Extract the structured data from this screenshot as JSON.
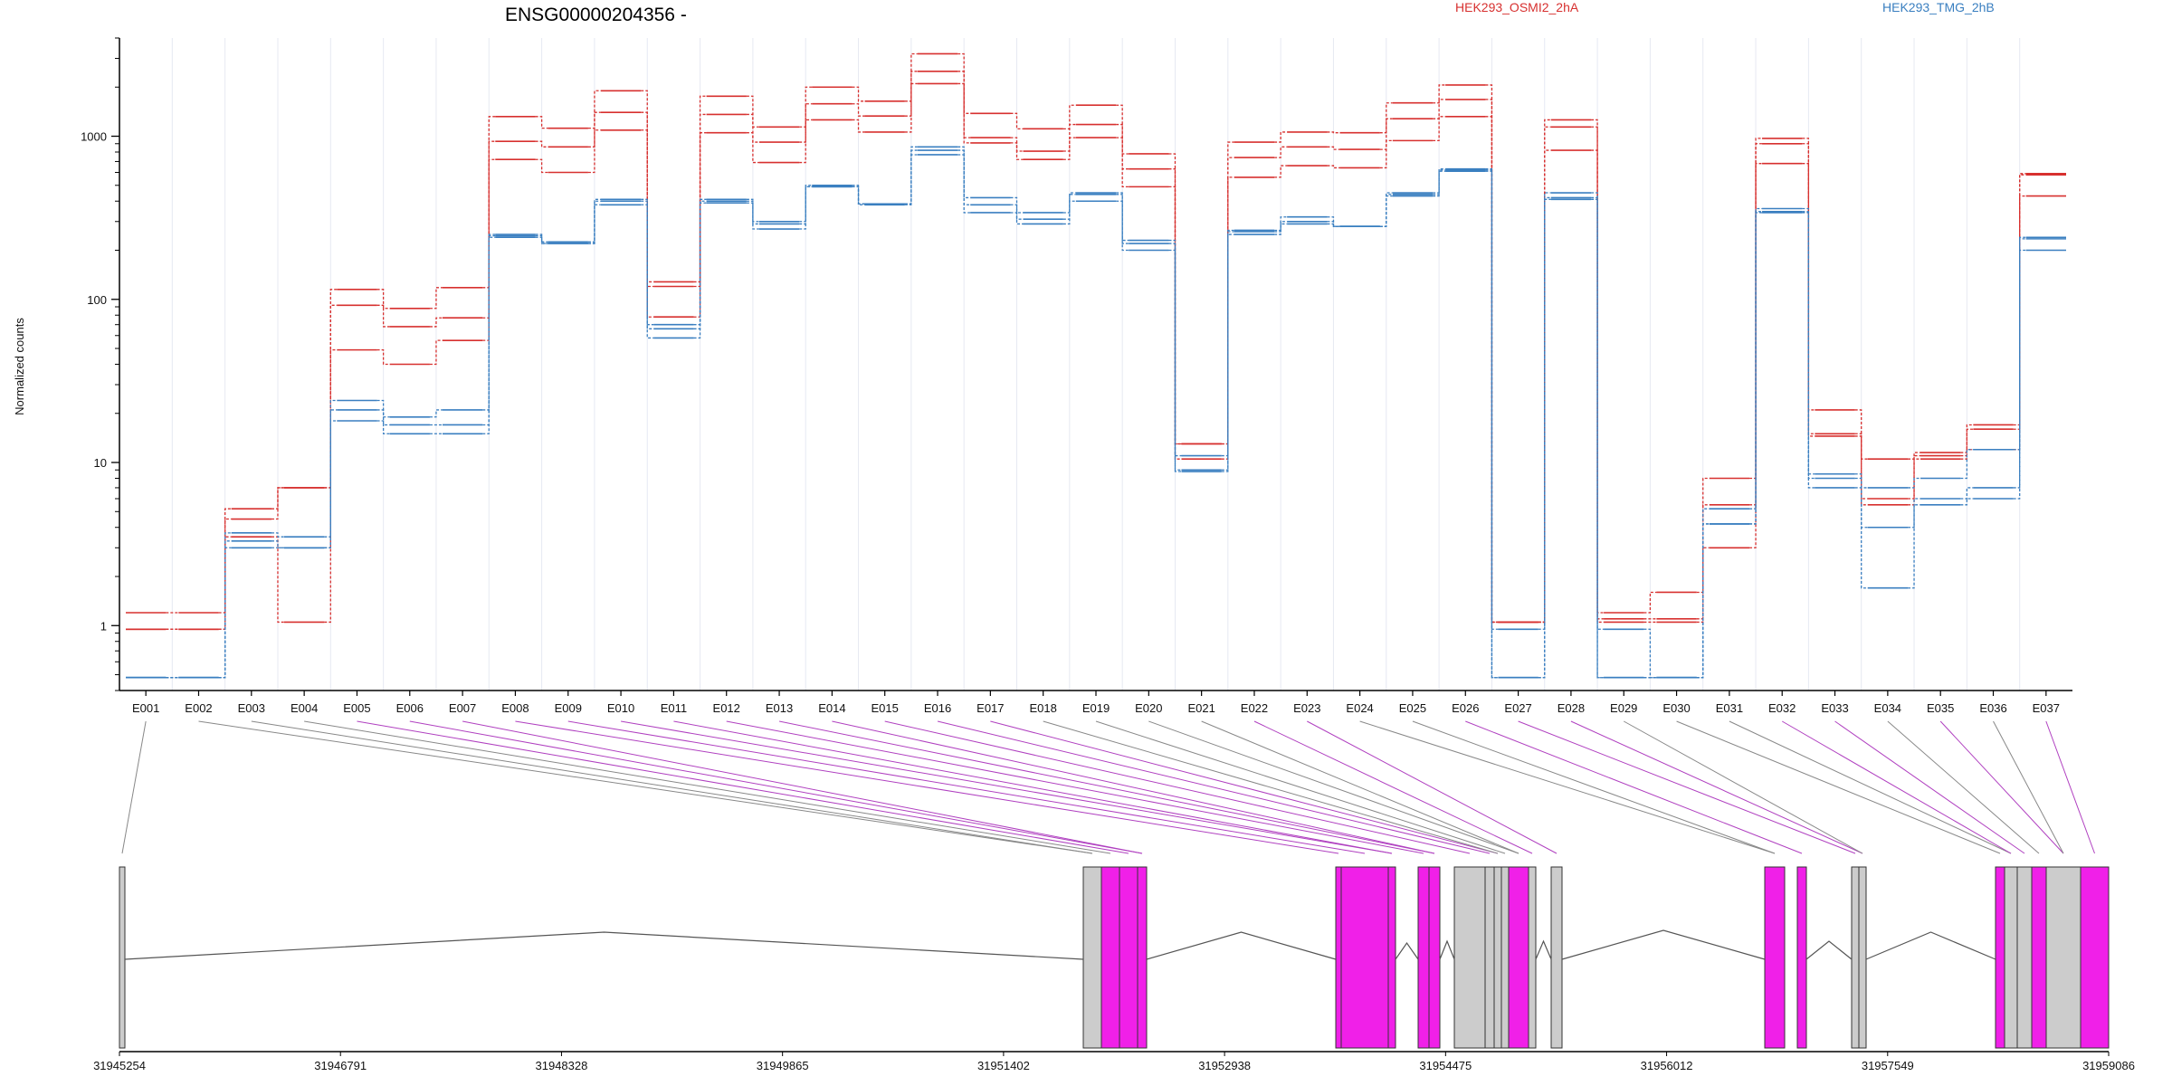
{
  "chart_data": {
    "type": "line",
    "title": "ENSG00000204356 -",
    "ylabel": "Normalized counts",
    "yscale": "log",
    "ylim": [
      0.4,
      4000
    ],
    "yticks": [
      1,
      10,
      100,
      1000
    ],
    "ytick_labels": [
      "1",
      "10",
      "100",
      "1000"
    ],
    "categories": [
      "E001",
      "E002",
      "E003",
      "E004",
      "E005",
      "E006",
      "E007",
      "E008",
      "E009",
      "E010",
      "E011",
      "E012",
      "E013",
      "E014",
      "E015",
      "E016",
      "E017",
      "E018",
      "E019",
      "E020",
      "E021",
      "E022",
      "E023",
      "E024",
      "E025",
      "E026",
      "E027",
      "E028",
      "E029",
      "E030",
      "E031",
      "E032",
      "E033",
      "E034",
      "E035",
      "E036",
      "E037"
    ],
    "legend": [
      {
        "name": "HEK293_OSMI2_2hA",
        "color": "#d7302f"
      },
      {
        "name": "HEK293_TMG_2hB",
        "color": "#3a7fc0"
      }
    ],
    "series": [
      {
        "group": "HEK293_OSMI2_2hA",
        "color": "#d7302f",
        "values": [
          1.2,
          1.2,
          5.2,
          7,
          115,
          88,
          118,
          1320,
          1120,
          1900,
          128,
          1760,
          1140,
          2000,
          1640,
          3200,
          1380,
          1110,
          1550,
          780,
          13,
          920,
          1060,
          1050,
          1600,
          2060,
          1.05,
          1260,
          1.2,
          1.6,
          8,
          970,
          21,
          10.5,
          11.5,
          17,
          580
        ]
      },
      {
        "group": "HEK293_OSMI2_2hA",
        "color": "#d7302f",
        "values": [
          0.95,
          0.95,
          4.5,
          7,
          92,
          68,
          77,
          930,
          860,
          1400,
          120,
          1360,
          920,
          1580,
          1330,
          2500,
          980,
          810,
          1180,
          630,
          13,
          740,
          860,
          830,
          1280,
          1680,
          1.05,
          1140,
          1.1,
          1.1,
          5.5,
          900,
          15,
          6,
          11,
          16,
          590
        ]
      },
      {
        "group": "HEK293_OSMI2_2hA",
        "color": "#d7302f",
        "values": [
          0.95,
          0.95,
          3.5,
          1.05,
          49,
          40,
          56,
          720,
          600,
          1090,
          78,
          1050,
          690,
          1260,
          1060,
          2100,
          910,
          720,
          980,
          490,
          10.5,
          560,
          660,
          640,
          940,
          1320,
          1.05,
          820,
          1.05,
          1.05,
          3,
          680,
          14.5,
          5.5,
          10.5,
          12,
          430
        ]
      },
      {
        "group": "HEK293_TMG_2hB",
        "color": "#3a7fc0",
        "values": [
          0.48,
          0.48,
          3.7,
          3.5,
          24,
          19,
          21,
          250,
          225,
          410,
          70,
          410,
          300,
          500,
          380,
          860,
          420,
          340,
          450,
          230,
          11,
          265,
          320,
          280,
          450,
          630,
          0.95,
          450,
          0.95,
          0.48,
          5.2,
          360,
          8.5,
          7,
          8,
          12,
          240
        ]
      },
      {
        "group": "HEK293_TMG_2hB",
        "color": "#3a7fc0",
        "values": [
          0.48,
          0.48,
          3.3,
          3,
          21,
          17,
          17,
          245,
          220,
          400,
          66,
          400,
          290,
          490,
          385,
          820,
          380,
          310,
          440,
          220,
          9,
          260,
          300,
          280,
          440,
          620,
          0.48,
          420,
          0.48,
          0.48,
          4.2,
          345,
          8,
          4,
          6,
          7,
          235
        ]
      },
      {
        "group": "HEK293_TMG_2hB",
        "color": "#3a7fc0",
        "values": [
          0.48,
          0.48,
          3,
          3,
          18,
          15,
          15,
          240,
          220,
          380,
          58,
          390,
          270,
          490,
          385,
          770,
          340,
          290,
          400,
          200,
          8.8,
          250,
          290,
          280,
          430,
          610,
          0.48,
          410,
          0.48,
          0.48,
          4.2,
          340,
          7,
          1.7,
          5.5,
          6,
          200
        ]
      }
    ],
    "genomic_axis_labels": [
      "31945254",
      "31946791",
      "31948328",
      "31949865",
      "31951402",
      "31952938",
      "31954475",
      "31956012",
      "31957549",
      "31959086"
    ],
    "grid": false
  },
  "colors": {
    "exon_used": "#f020e8",
    "exon_other": "#cccccc",
    "connector_used": "#b040c0",
    "connector_other": "#888888"
  }
}
